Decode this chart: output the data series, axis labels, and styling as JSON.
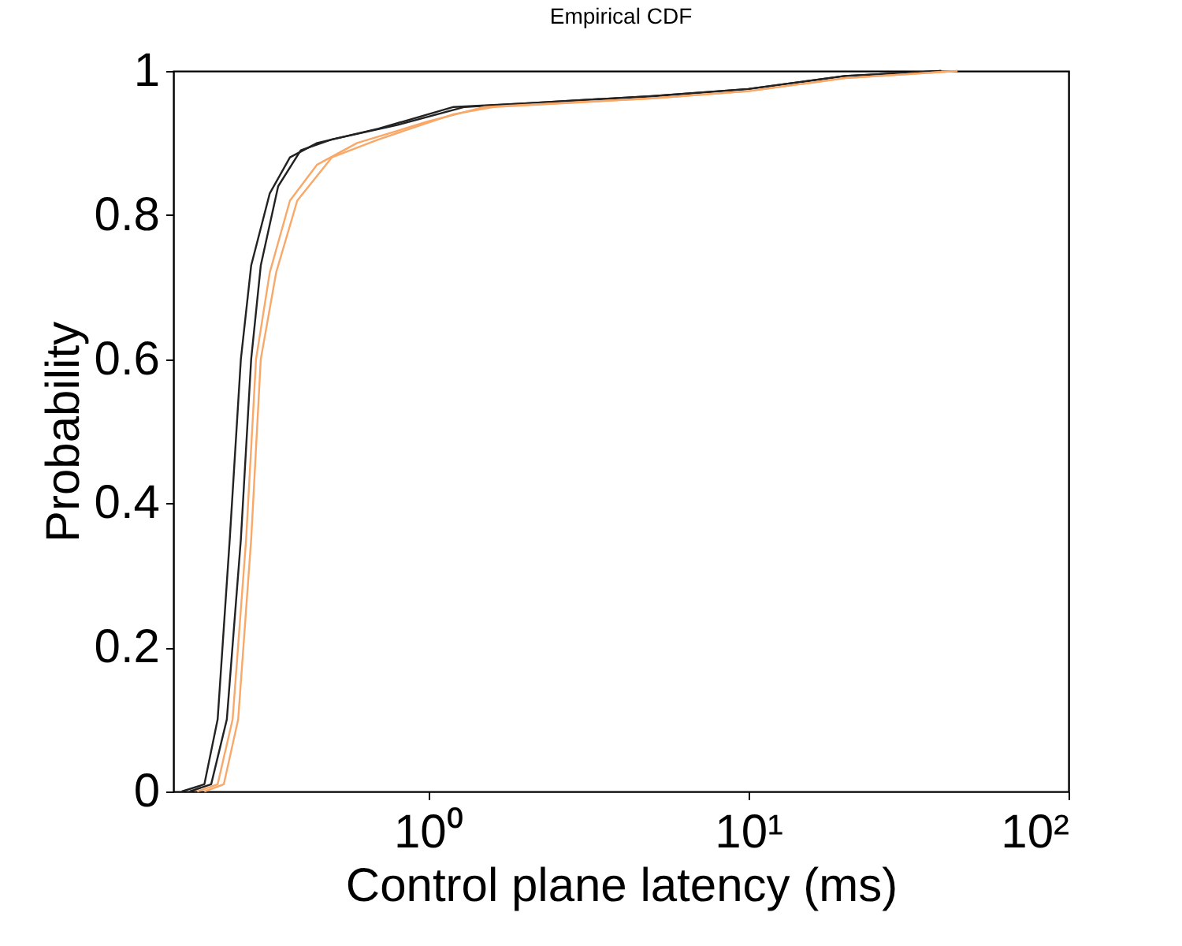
{
  "chart_data": {
    "type": "line",
    "title": "Empirical CDF",
    "xlabel": "Control plane latency (ms)",
    "ylabel": "Probability",
    "log": "x",
    "grid": false,
    "line_style": "solid",
    "marker": "none",
    "xlim": [
      0.16,
      100
    ],
    "xticks": [
      {
        "value": 1,
        "label": "10⁰"
      },
      {
        "value": 10,
        "label": "10¹"
      },
      {
        "value": 100,
        "label": "10²"
      }
    ],
    "ylim": [
      0,
      1
    ],
    "yticks": [
      0,
      0.2,
      0.4,
      0.6,
      0.8,
      1
    ],
    "series": [
      {
        "color": "#222222",
        "x": [
          0.17,
          0.2,
          0.22,
          0.24,
          0.26,
          0.28,
          0.32,
          0.37,
          0.45,
          0.7,
          1.2,
          2,
          5,
          10,
          20,
          40
        ],
        "values": [
          0,
          0.01,
          0.1,
          0.35,
          0.6,
          0.73,
          0.83,
          0.88,
          0.9,
          0.92,
          0.95,
          0.955,
          0.965,
          0.975,
          0.993,
          1
        ]
      },
      {
        "color": "#222222",
        "x": [
          0.18,
          0.21,
          0.235,
          0.26,
          0.28,
          0.3,
          0.34,
          0.4,
          0.5,
          0.8,
          1.3,
          2,
          5,
          10,
          20,
          40
        ],
        "values": [
          0,
          0.01,
          0.1,
          0.35,
          0.6,
          0.73,
          0.84,
          0.89,
          0.905,
          0.925,
          0.95,
          0.955,
          0.965,
          0.975,
          0.993,
          1
        ]
      },
      {
        "color": "#f8a868",
        "x": [
          0.19,
          0.22,
          0.245,
          0.27,
          0.29,
          0.32,
          0.37,
          0.45,
          0.6,
          1,
          1.5,
          5,
          10,
          20,
          45
        ],
        "values": [
          0,
          0.01,
          0.1,
          0.35,
          0.6,
          0.72,
          0.82,
          0.87,
          0.9,
          0.93,
          0.95,
          0.962,
          0.972,
          0.99,
          1
        ]
      },
      {
        "color": "#f8a868",
        "x": [
          0.2,
          0.23,
          0.255,
          0.28,
          0.3,
          0.335,
          0.39,
          0.5,
          0.7,
          1.2,
          1.6,
          5,
          10,
          20,
          45
        ],
        "values": [
          0,
          0.01,
          0.1,
          0.35,
          0.6,
          0.72,
          0.82,
          0.88,
          0.905,
          0.94,
          0.95,
          0.962,
          0.972,
          0.99,
          1
        ]
      }
    ]
  }
}
